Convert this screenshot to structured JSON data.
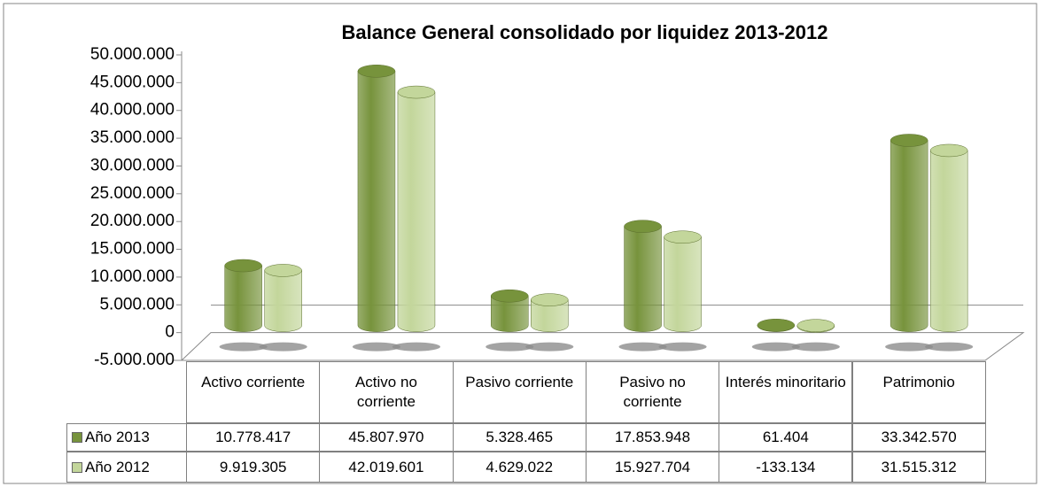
{
  "chart_data": {
    "type": "bar",
    "title": "Balance General consolidado por liquidez 2013-2012",
    "categories": [
      "Activo corriente",
      "Activo no corriente",
      "Pasivo corriente",
      "Pasivo no corriente",
      "Interés minoritario",
      "Patrimonio"
    ],
    "series": [
      {
        "name": "Año 2013",
        "color": "#77933c",
        "values": [
          10778417,
          45807970,
          5328465,
          17853948,
          61404,
          33342570
        ],
        "value_labels": [
          "10.778.417",
          "45.807.970",
          "5.328.465",
          "17.853.948",
          "61.404",
          "33.342.570"
        ]
      },
      {
        "name": "Año 2012",
        "color": "#c3d69b",
        "values": [
          9919305,
          42019601,
          4629022,
          15927704,
          -133134,
          31515312
        ],
        "value_labels": [
          "9.919.305",
          "42.019.601",
          "4.629.022",
          "15.927.704",
          "-133.134",
          "31.515.312"
        ]
      }
    ],
    "ylim": [
      -5000000,
      50000000
    ],
    "yticks": [
      {
        "value": -5000000,
        "label": "-5.000.000"
      },
      0,
      {
        "value": 5000000,
        "label": "5.000.000"
      },
      {
        "value": 10000000,
        "label": "10.000.000"
      },
      {
        "value": 15000000,
        "label": "15.000.000"
      },
      {
        "value": 20000000,
        "label": "20.000.000"
      },
      {
        "value": 25000000,
        "label": "25.000.000"
      },
      {
        "value": 30000000,
        "label": "30.000.000"
      },
      {
        "value": 35000000,
        "label": "35.000.000"
      },
      {
        "value": 40000000,
        "label": "40.000.000"
      },
      {
        "value": 45000000,
        "label": "45.000.000"
      },
      {
        "value": 50000000,
        "label": "50.000.000"
      }
    ]
  }
}
